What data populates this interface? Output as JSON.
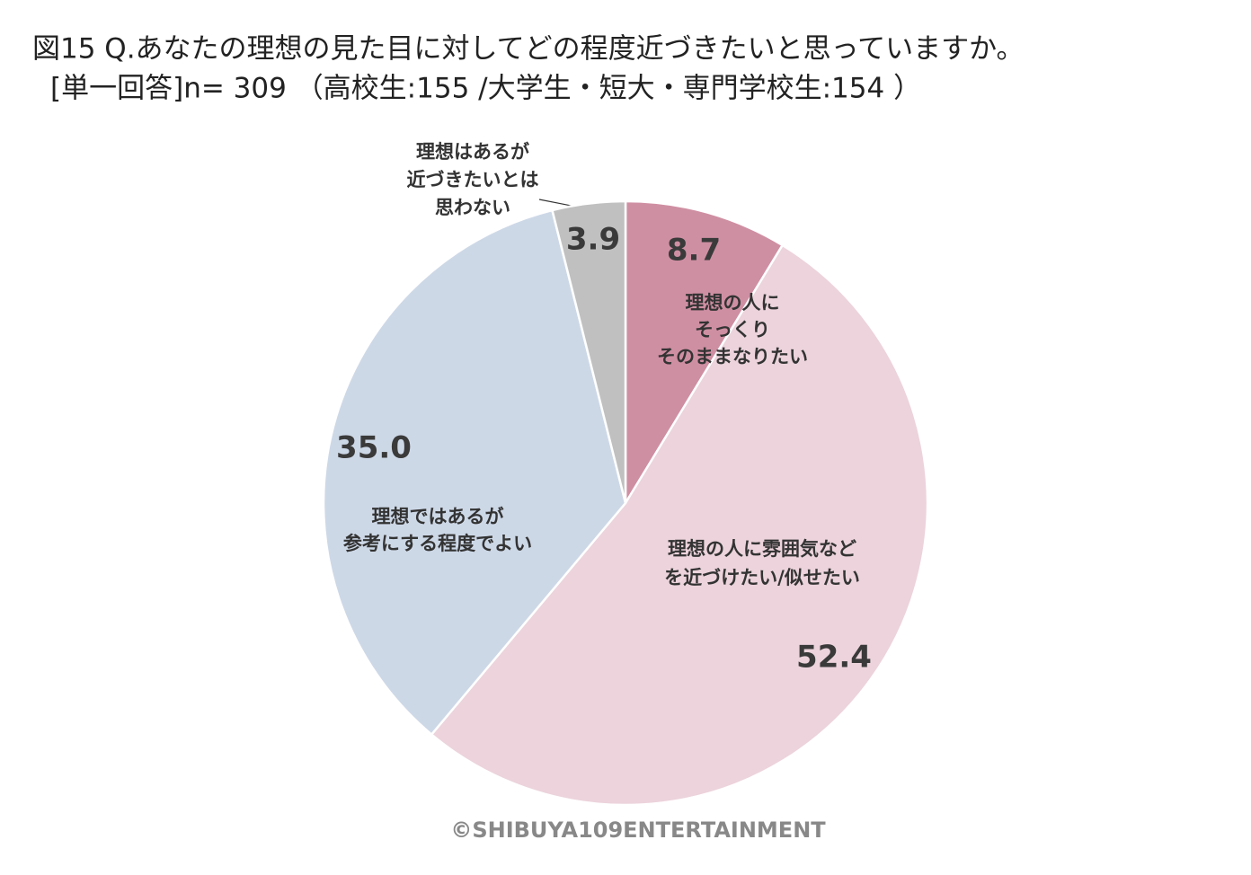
{
  "chart_data": {
    "type": "pie",
    "title": "図15 Q.あなたの理想の見た目に対してどの程度近づきたいと思っていますか。",
    "subtitle": "[単一回答]n= 309 （高校生:155 /大学生・短大・専門学校生:154 ）",
    "categories": [
      [
        "理想の人に",
        "そっくり",
        "そのままなりたい"
      ],
      [
        "理想の人に雰囲気など",
        "を近づけたい/似せたい"
      ],
      [
        "理想ではあるが",
        "参考にする程度でよい"
      ],
      [
        "理想はあるが",
        "近づきたいとは",
        "思わない"
      ]
    ],
    "values": [
      8.7,
      52.4,
      35,
      3.9
    ],
    "value_labels": [
      "8.7",
      "52.4",
      "35.0",
      "3.9"
    ],
    "colors": [
      "#cf8fa3",
      "#ecd3dc",
      "#cdd8e7",
      "#c0c0c0"
    ],
    "footer": "©SHIBUYA109ENTERTAINMENT"
  }
}
